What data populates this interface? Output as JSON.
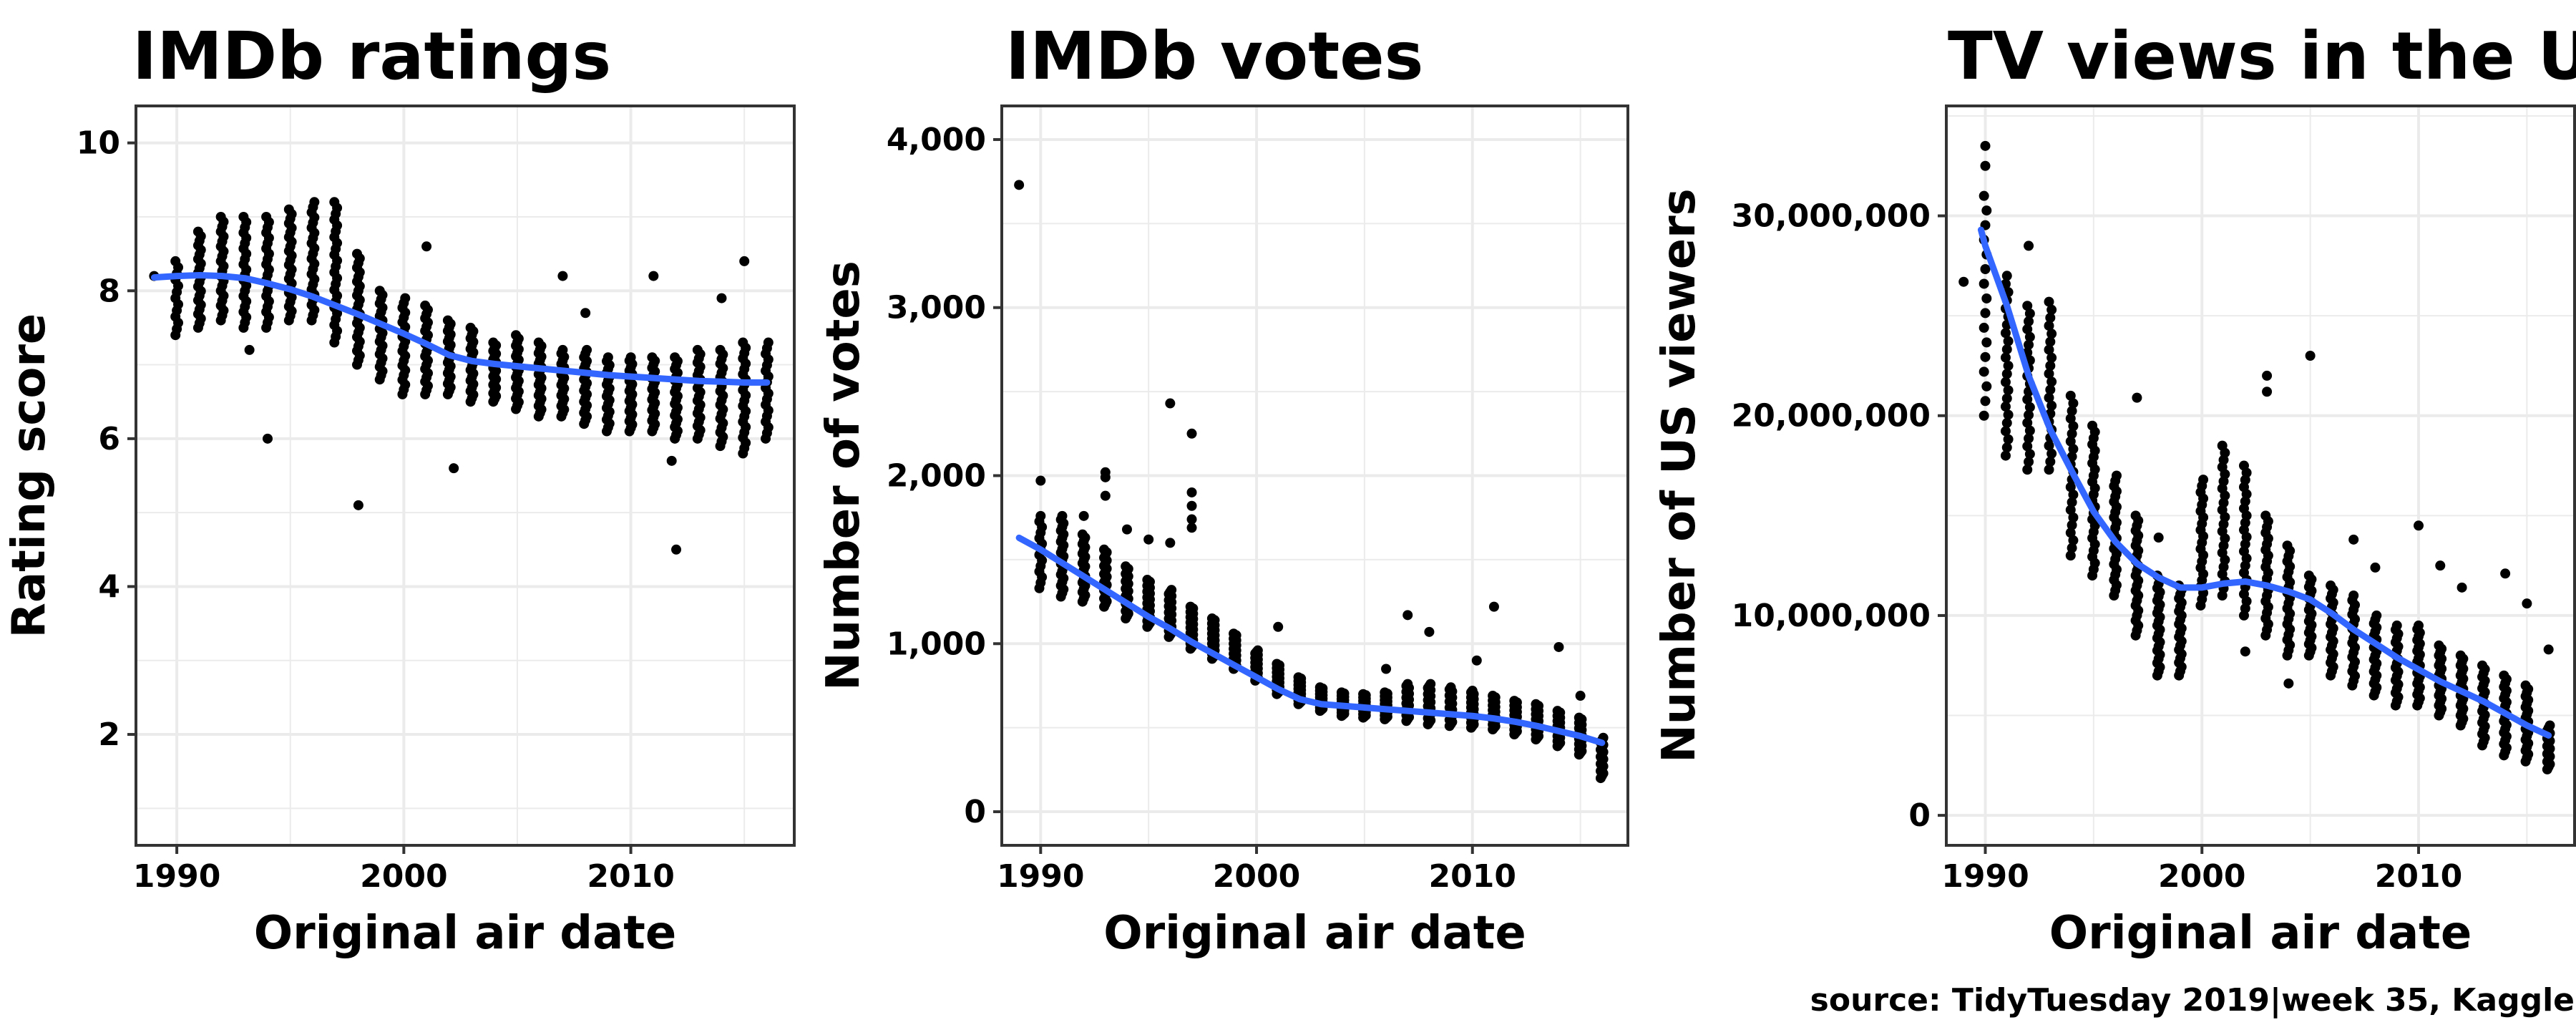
{
  "caption": "source: TidyTuesday 2019|week 35, Kaggle",
  "colors": {
    "points": "#000000",
    "smooth": "#3366FF",
    "grid": "#EBEBEB",
    "panel_border": "#333333"
  },
  "chart_data": [
    {
      "type": "scatter",
      "title": "IMDb ratings",
      "xlabel": "Original air date",
      "ylabel": "Rating score",
      "xlim": [
        1988.2,
        2017.2
      ],
      "ylim": [
        0.5,
        10.5
      ],
      "x_ticks": [
        1990,
        2000,
        2010
      ],
      "x_tick_labels": [
        "1990",
        "2000",
        "2010"
      ],
      "y_ticks": [
        2,
        4,
        6,
        8,
        10
      ],
      "y_tick_labels": [
        "2",
        "4",
        "6",
        "8",
        "10"
      ],
      "grid": true,
      "seasons": [
        {
          "x": 1990.0,
          "lo": 7.4,
          "hi": 8.4,
          "n": 13
        },
        {
          "x": 1991.0,
          "lo": 7.5,
          "hi": 8.8,
          "n": 22
        },
        {
          "x": 1992.0,
          "lo": 7.6,
          "hi": 9.0,
          "n": 22
        },
        {
          "x": 1993.0,
          "lo": 7.5,
          "hi": 9.0,
          "n": 22
        },
        {
          "x": 1994.0,
          "lo": 7.5,
          "hi": 9.0,
          "n": 22
        },
        {
          "x": 1995.0,
          "lo": 7.6,
          "hi": 9.1,
          "n": 25
        },
        {
          "x": 1996.0,
          "lo": 7.6,
          "hi": 9.2,
          "n": 24
        },
        {
          "x": 1997.0,
          "lo": 7.3,
          "hi": 9.2,
          "n": 25
        },
        {
          "x": 1998.0,
          "lo": 7.0,
          "hi": 8.5,
          "n": 25
        },
        {
          "x": 1999.0,
          "lo": 6.8,
          "hi": 8.0,
          "n": 22
        },
        {
          "x": 2000.0,
          "lo": 6.6,
          "hi": 7.9,
          "n": 21
        },
        {
          "x": 2001.0,
          "lo": 6.6,
          "hi": 7.8,
          "n": 22
        },
        {
          "x": 2002.0,
          "lo": 6.6,
          "hi": 7.6,
          "n": 22
        },
        {
          "x": 2003.0,
          "lo": 6.5,
          "hi": 7.5,
          "n": 22
        },
        {
          "x": 2004.0,
          "lo": 6.5,
          "hi": 7.3,
          "n": 22
        },
        {
          "x": 2005.0,
          "lo": 6.4,
          "hi": 7.4,
          "n": 22
        },
        {
          "x": 2006.0,
          "lo": 6.3,
          "hi": 7.3,
          "n": 22
        },
        {
          "x": 2007.0,
          "lo": 6.3,
          "hi": 7.2,
          "n": 20
        },
        {
          "x": 2008.0,
          "lo": 6.2,
          "hi": 7.2,
          "n": 21
        },
        {
          "x": 2009.0,
          "lo": 6.1,
          "hi": 7.1,
          "n": 20
        },
        {
          "x": 2010.0,
          "lo": 6.1,
          "hi": 7.1,
          "n": 23
        },
        {
          "x": 2011.0,
          "lo": 6.1,
          "hi": 7.1,
          "n": 22
        },
        {
          "x": 2012.0,
          "lo": 6.0,
          "hi": 7.1,
          "n": 22
        },
        {
          "x": 2013.0,
          "lo": 6.0,
          "hi": 7.2,
          "n": 22
        },
        {
          "x": 2014.0,
          "lo": 5.9,
          "hi": 7.2,
          "n": 22
        },
        {
          "x": 2015.0,
          "lo": 5.8,
          "hi": 7.3,
          "n": 22
        },
        {
          "x": 2016.0,
          "lo": 6.0,
          "hi": 7.3,
          "n": 18
        }
      ],
      "outliers": [
        {
          "x": 1989.0,
          "y": 8.2
        },
        {
          "x": 1993.2,
          "y": 7.2
        },
        {
          "x": 1994.0,
          "y": 6.0
        },
        {
          "x": 1998.0,
          "y": 5.1
        },
        {
          "x": 2001.0,
          "y": 8.6
        },
        {
          "x": 2002.2,
          "y": 5.6
        },
        {
          "x": 2007.0,
          "y": 8.2
        },
        {
          "x": 2008.0,
          "y": 7.7
        },
        {
          "x": 2011.0,
          "y": 8.2
        },
        {
          "x": 2011.8,
          "y": 5.7
        },
        {
          "x": 2012.0,
          "y": 4.5
        },
        {
          "x": 2014.0,
          "y": 7.9
        },
        {
          "x": 2015.0,
          "y": 8.4
        }
      ],
      "smooth": {
        "x": [
          1989,
          1990,
          1991,
          1992,
          1993,
          1994,
          1995,
          1996,
          1997,
          1998,
          1999,
          2000,
          2001,
          2002,
          2003,
          2004,
          2005,
          2006,
          2007,
          2008,
          2009,
          2010,
          2011,
          2012,
          2013,
          2014,
          2015,
          2016
        ],
        "y": [
          8.18,
          8.2,
          8.21,
          8.2,
          8.17,
          8.1,
          8.02,
          7.92,
          7.8,
          7.68,
          7.55,
          7.42,
          7.28,
          7.13,
          7.05,
          7.01,
          6.98,
          6.95,
          6.92,
          6.89,
          6.86,
          6.84,
          6.82,
          6.8,
          6.78,
          6.77,
          6.76,
          6.76
        ]
      }
    },
    {
      "type": "scatter",
      "title": "IMDb votes",
      "xlabel": "Original air date",
      "ylabel": "Number of votes",
      "xlim": [
        1988.2,
        2017.2
      ],
      "ylim": [
        -200,
        4200
      ],
      "x_ticks": [
        1990,
        2000,
        2010
      ],
      "x_tick_labels": [
        "1990",
        "2000",
        "2010"
      ],
      "y_ticks": [
        0,
        1000,
        2000,
        3000,
        4000
      ],
      "y_tick_labels": [
        "0",
        "1,000",
        "2,000",
        "3,000",
        "4,000"
      ],
      "grid": true,
      "seasons": [
        {
          "x": 1990.0,
          "lo": 1330,
          "hi": 1760,
          "n": 14
        },
        {
          "x": 1991.0,
          "lo": 1280,
          "hi": 1760,
          "n": 23
        },
        {
          "x": 1992.0,
          "lo": 1250,
          "hi": 1650,
          "n": 22
        },
        {
          "x": 1993.0,
          "lo": 1220,
          "hi": 1560,
          "n": 22
        },
        {
          "x": 1994.0,
          "lo": 1150,
          "hi": 1460,
          "n": 22
        },
        {
          "x": 1995.0,
          "lo": 1100,
          "hi": 1380,
          "n": 25
        },
        {
          "x": 1996.0,
          "lo": 1040,
          "hi": 1320,
          "n": 24
        },
        {
          "x": 1997.0,
          "lo": 970,
          "hi": 1220,
          "n": 25
        },
        {
          "x": 1998.0,
          "lo": 910,
          "hi": 1150,
          "n": 25
        },
        {
          "x": 1999.0,
          "lo": 850,
          "hi": 1060,
          "n": 22
        },
        {
          "x": 2000.0,
          "lo": 780,
          "hi": 960,
          "n": 21
        },
        {
          "x": 2001.0,
          "lo": 700,
          "hi": 880,
          "n": 22
        },
        {
          "x": 2002.0,
          "lo": 640,
          "hi": 800,
          "n": 22
        },
        {
          "x": 2003.0,
          "lo": 600,
          "hi": 740,
          "n": 22
        },
        {
          "x": 2004.0,
          "lo": 570,
          "hi": 710,
          "n": 22
        },
        {
          "x": 2005.0,
          "lo": 560,
          "hi": 700,
          "n": 22
        },
        {
          "x": 2006.0,
          "lo": 550,
          "hi": 710,
          "n": 22
        },
        {
          "x": 2007.0,
          "lo": 540,
          "hi": 760,
          "n": 20
        },
        {
          "x": 2008.0,
          "lo": 520,
          "hi": 760,
          "n": 21
        },
        {
          "x": 2009.0,
          "lo": 510,
          "hi": 740,
          "n": 20
        },
        {
          "x": 2010.0,
          "lo": 500,
          "hi": 720,
          "n": 23
        },
        {
          "x": 2011.0,
          "lo": 490,
          "hi": 690,
          "n": 22
        },
        {
          "x": 2012.0,
          "lo": 460,
          "hi": 660,
          "n": 22
        },
        {
          "x": 2013.0,
          "lo": 430,
          "hi": 640,
          "n": 22
        },
        {
          "x": 2014.0,
          "lo": 390,
          "hi": 600,
          "n": 22
        },
        {
          "x": 2015.0,
          "lo": 340,
          "hi": 560,
          "n": 22
        },
        {
          "x": 2016.0,
          "lo": 200,
          "hi": 440,
          "n": 18
        }
      ],
      "outliers": [
        {
          "x": 1989.0,
          "y": 3730
        },
        {
          "x": 1990.0,
          "y": 1970
        },
        {
          "x": 1992.0,
          "y": 1760
        },
        {
          "x": 1993.0,
          "y": 2020
        },
        {
          "x": 1993.0,
          "y": 1990
        },
        {
          "x": 1993.0,
          "y": 1880
        },
        {
          "x": 1994.0,
          "y": 1680
        },
        {
          "x": 1995.0,
          "y": 1620
        },
        {
          "x": 1996.0,
          "y": 2430
        },
        {
          "x": 1996.0,
          "y": 1600
        },
        {
          "x": 1997.0,
          "y": 2250
        },
        {
          "x": 1997.0,
          "y": 1900
        },
        {
          "x": 1997.0,
          "y": 1820
        },
        {
          "x": 1997.0,
          "y": 1740
        },
        {
          "x": 1997.0,
          "y": 1690
        },
        {
          "x": 2001.0,
          "y": 1100
        },
        {
          "x": 2007.0,
          "y": 1170
        },
        {
          "x": 2008.0,
          "y": 1070
        },
        {
          "x": 2006.0,
          "y": 850
        },
        {
          "x": 2011.0,
          "y": 1220
        },
        {
          "x": 2010.2,
          "y": 900
        },
        {
          "x": 2014.0,
          "y": 980
        },
        {
          "x": 2015.0,
          "y": 690
        }
      ],
      "smooth": {
        "x": [
          1989,
          1990,
          1991,
          1992,
          1993,
          1994,
          1995,
          1996,
          1997,
          1998,
          1999,
          2000,
          2001,
          2002,
          2003,
          2004,
          2005,
          2006,
          2007,
          2008,
          2009,
          2010,
          2011,
          2012,
          2013,
          2014,
          2015,
          2016
        ],
        "y": [
          1630,
          1560,
          1480,
          1400,
          1320,
          1240,
          1160,
          1090,
          1010,
          940,
          870,
          800,
          730,
          670,
          640,
          630,
          620,
          610,
          600,
          590,
          580,
          570,
          555,
          535,
          510,
          480,
          450,
          410
        ]
      }
    },
    {
      "type": "scatter",
      "title": "TV views in the US",
      "xlabel": "Original air date",
      "ylabel": "Number of US viewers",
      "xlim": [
        1988.2,
        2017.2
      ],
      "ylim": [
        -1500000,
        35500000
      ],
      "x_ticks": [
        1990,
        2000,
        2010
      ],
      "x_tick_labels": [
        "1990",
        "2000",
        "2010"
      ],
      "y_ticks": [
        0,
        10000000,
        20000000,
        30000000
      ],
      "y_tick_labels": [
        "0",
        "10,000,000",
        "20,000,000",
        "30,000,000"
      ],
      "grid": true,
      "seasons": [
        {
          "x": 1990.0,
          "lo": 20000000,
          "hi": 31000000,
          "n": 16
        },
        {
          "x": 1991.0,
          "lo": 18000000,
          "hi": 27000000,
          "n": 23
        },
        {
          "x": 1992.0,
          "lo": 17300000,
          "hi": 25500000,
          "n": 22
        },
        {
          "x": 1993.0,
          "lo": 17300000,
          "hi": 25700000,
          "n": 22
        },
        {
          "x": 1994.0,
          "lo": 13000000,
          "hi": 21000000,
          "n": 22
        },
        {
          "x": 1995.0,
          "lo": 12000000,
          "hi": 19500000,
          "n": 25
        },
        {
          "x": 1996.0,
          "lo": 11000000,
          "hi": 17000000,
          "n": 24
        },
        {
          "x": 1997.0,
          "lo": 9000000,
          "hi": 15000000,
          "n": 25
        },
        {
          "x": 1998.0,
          "lo": 7000000,
          "hi": 12000000,
          "n": 25
        },
        {
          "x": 1999.0,
          "lo": 7000000,
          "hi": 11500000,
          "n": 22
        },
        {
          "x": 2000.0,
          "lo": 10500000,
          "hi": 16800000,
          "n": 21
        },
        {
          "x": 2001.0,
          "lo": 11000000,
          "hi": 18500000,
          "n": 22
        },
        {
          "x": 2002.0,
          "lo": 10000000,
          "hi": 17500000,
          "n": 22
        },
        {
          "x": 2003.0,
          "lo": 9000000,
          "hi": 15000000,
          "n": 22
        },
        {
          "x": 2004.0,
          "lo": 8000000,
          "hi": 13500000,
          "n": 22
        },
        {
          "x": 2005.0,
          "lo": 8000000,
          "hi": 12000000,
          "n": 22
        },
        {
          "x": 2006.0,
          "lo": 7000000,
          "hi": 11500000,
          "n": 22
        },
        {
          "x": 2007.0,
          "lo": 6500000,
          "hi": 11000000,
          "n": 20
        },
        {
          "x": 2008.0,
          "lo": 6000000,
          "hi": 10000000,
          "n": 21
        },
        {
          "x": 2009.0,
          "lo": 5500000,
          "hi": 9500000,
          "n": 20
        },
        {
          "x": 2010.0,
          "lo": 5500000,
          "hi": 9500000,
          "n": 23
        },
        {
          "x": 2011.0,
          "lo": 5000000,
          "hi": 8500000,
          "n": 22
        },
        {
          "x": 2012.0,
          "lo": 4500000,
          "hi": 8000000,
          "n": 22
        },
        {
          "x": 2013.0,
          "lo": 3500000,
          "hi": 7500000,
          "n": 22
        },
        {
          "x": 2014.0,
          "lo": 3000000,
          "hi": 7000000,
          "n": 22
        },
        {
          "x": 2015.0,
          "lo": 2700000,
          "hi": 6500000,
          "n": 22
        },
        {
          "x": 2016.0,
          "lo": 2300000,
          "hi": 4500000,
          "n": 18
        }
      ],
      "outliers": [
        {
          "x": 1989.0,
          "y": 26700000
        },
        {
          "x": 1990.0,
          "y": 33500000
        },
        {
          "x": 1990.0,
          "y": 32500000
        },
        {
          "x": 1992.0,
          "y": 28500000
        },
        {
          "x": 1997.0,
          "y": 20900000
        },
        {
          "x": 1998.0,
          "y": 13900000
        },
        {
          "x": 2002.0,
          "y": 8200000
        },
        {
          "x": 2003.0,
          "y": 22000000
        },
        {
          "x": 2003.0,
          "y": 21200000
        },
        {
          "x": 2004.0,
          "y": 6600000
        },
        {
          "x": 2005.0,
          "y": 23000000
        },
        {
          "x": 2008.0,
          "y": 12400000
        },
        {
          "x": 2007.0,
          "y": 13800000
        },
        {
          "x": 2010.0,
          "y": 14500000
        },
        {
          "x": 2011.0,
          "y": 12500000
        },
        {
          "x": 2012.0,
          "y": 11400000
        },
        {
          "x": 2014.0,
          "y": 12100000
        },
        {
          "x": 2015.0,
          "y": 10600000
        },
        {
          "x": 2016.0,
          "y": 8300000
        }
      ],
      "smooth": {
        "x": [
          1989.8,
          1990,
          1991,
          1992,
          1993,
          1994,
          1995,
          1996,
          1997,
          1998,
          1999,
          2000,
          2001,
          2002,
          2003,
          2004,
          2005,
          2006,
          2007,
          2008,
          2009,
          2010,
          2011,
          2012,
          2013,
          2014,
          2015,
          2016
        ],
        "y": [
          29300000,
          28500000,
          25500000,
          22000000,
          19300000,
          17200000,
          15200000,
          13700000,
          12600000,
          11900000,
          11400000,
          11400000,
          11600000,
          11700000,
          11500000,
          11200000,
          10800000,
          10100000,
          9300000,
          8600000,
          7900000,
          7300000,
          6700000,
          6200000,
          5700000,
          5100000,
          4500000,
          4000000
        ]
      }
    }
  ]
}
